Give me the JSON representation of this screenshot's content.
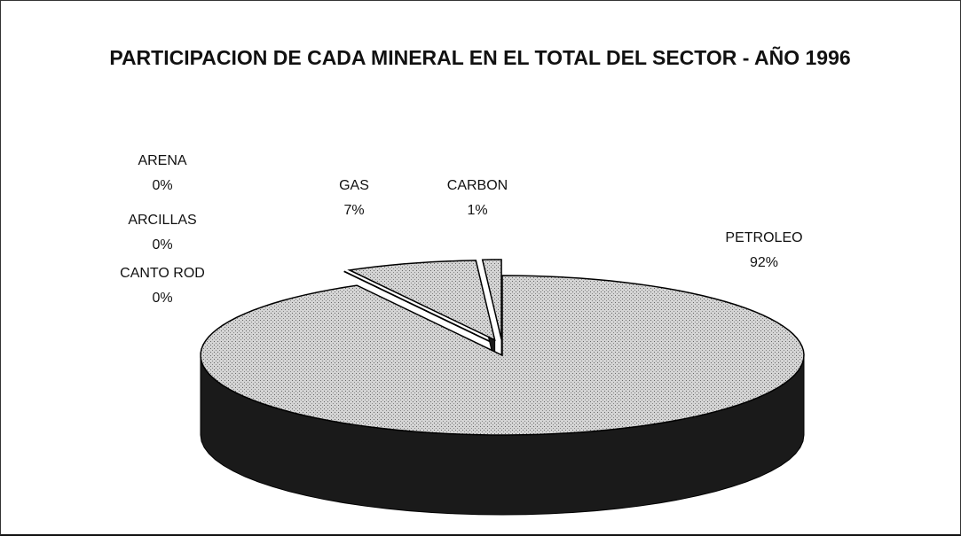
{
  "chart_data": {
    "type": "pie",
    "title": "PARTICIPACION DE CADA MINERAL EN EL TOTAL DEL SECTOR - AÑO 1996",
    "categories": [
      "PETROLEO",
      "CANTO ROD",
      "ARCILLAS",
      "ARENA",
      "GAS",
      "CARBON"
    ],
    "values": [
      92,
      0,
      0,
      0,
      7,
      1
    ],
    "value_labels": [
      "92%",
      "0%",
      "0%",
      "0%",
      "7%",
      "1%"
    ]
  }
}
